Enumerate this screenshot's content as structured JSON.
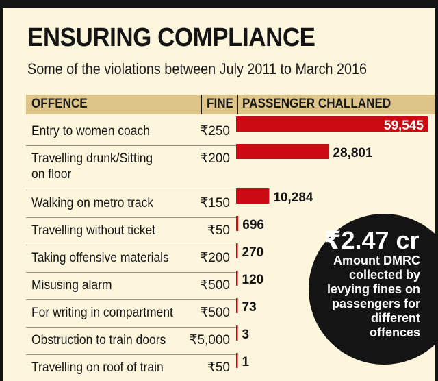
{
  "chart_data": {
    "type": "bar",
    "title": "ENSURING COMPLIANCE",
    "subtitle": "Some of the violations between July 2011 to March 2016",
    "columns": [
      "OFFENCE",
      "FINE",
      "PASSENGER CHALLANED"
    ],
    "rows": [
      {
        "offence": [
          "Entry to women coach"
        ],
        "fine": "₹250",
        "value": 59545,
        "label": "59,545"
      },
      {
        "offence": [
          "Travelling drunk/Sitting",
          "on floor"
        ],
        "fine": "₹200",
        "value": 28801,
        "label": "28,801"
      },
      {
        "offence": [
          "Walking on metro track"
        ],
        "fine": "₹150",
        "value": 10284,
        "label": "10,284"
      },
      {
        "offence": [
          "Travelling without ticket"
        ],
        "fine": "₹50",
        "value": 696,
        "label": "696"
      },
      {
        "offence": [
          "Taking offensive materials"
        ],
        "fine": "₹200",
        "value": 270,
        "label": "270"
      },
      {
        "offence": [
          "Misusing alarm"
        ],
        "fine": "₹500",
        "value": 120,
        "label": "120"
      },
      {
        "offence": [
          "For writing in compartment"
        ],
        "fine": "₹500",
        "value": 73,
        "label": "73"
      },
      {
        "offence": [
          "Obstruction to train doors"
        ],
        "fine": "₹5,000",
        "value": 3,
        "label": "3"
      },
      {
        "offence": [
          "Travelling on roof of train"
        ],
        "fine": "₹50",
        "value": 1,
        "label": "1"
      }
    ],
    "xlim": [
      0,
      59545
    ],
    "bar_color": "#cc0a12",
    "grid": false,
    "legend": "none"
  },
  "callout": {
    "amount": "₹2.47 cr",
    "lines": [
      "Amount DMRC",
      "collected by",
      "levying fines on",
      "passengers for",
      "different",
      "offences"
    ]
  },
  "colors": {
    "background": "#fdf5dc",
    "header": "#ddc58a",
    "frame": "#141414",
    "bar": "#cc0a12"
  }
}
